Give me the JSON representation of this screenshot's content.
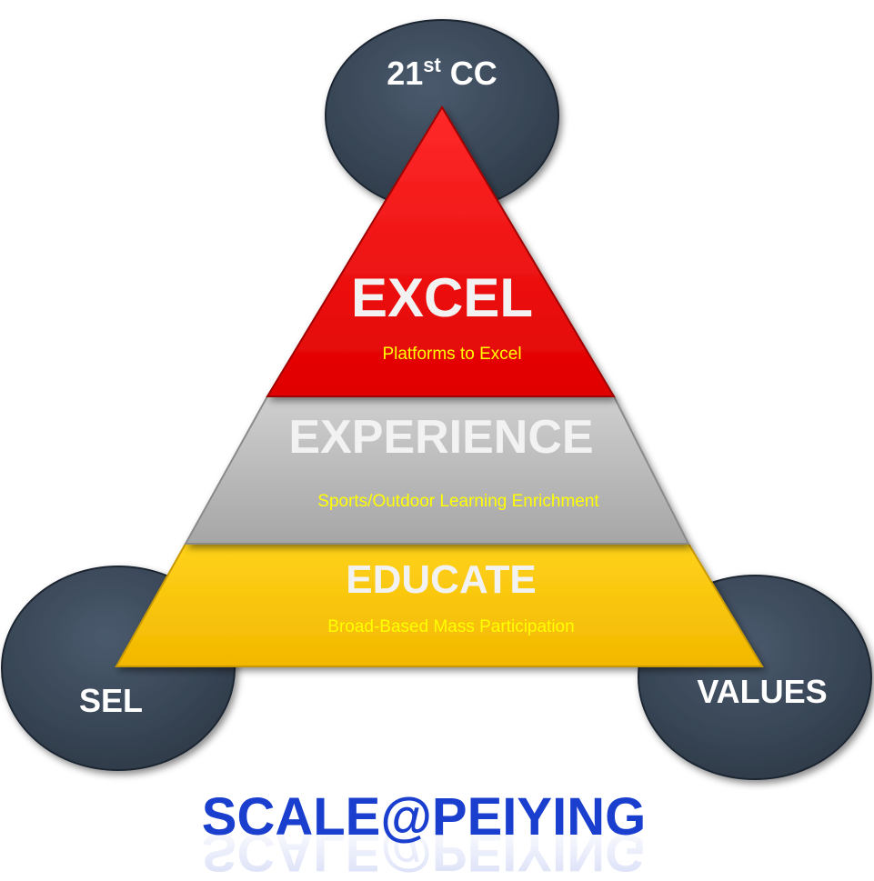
{
  "circles": {
    "top": {
      "label": "21",
      "sup": "st",
      "suffix": " CC"
    },
    "left": {
      "label": "SEL"
    },
    "right": {
      "label": "VALUES"
    }
  },
  "tiers": {
    "excel": {
      "title": "EXCEL",
      "subtitle": "Platforms to Excel",
      "color": "#ff0000"
    },
    "experience": {
      "title": "EXPERIENCE",
      "subtitle": "Sports/Outdoor Learning Enrichment",
      "color": "#b3b3b3"
    },
    "educate": {
      "title": "EDUCATE",
      "subtitle": "Broad-Based Mass Participation",
      "color": "#ffcc00"
    }
  },
  "footer": {
    "title": "SCALE@PEIYING",
    "color": "#1a3fcf"
  },
  "colors": {
    "circle": "#3b4a5c",
    "subtitle": "#ffff00",
    "tier_title": "#f2f2f2"
  }
}
